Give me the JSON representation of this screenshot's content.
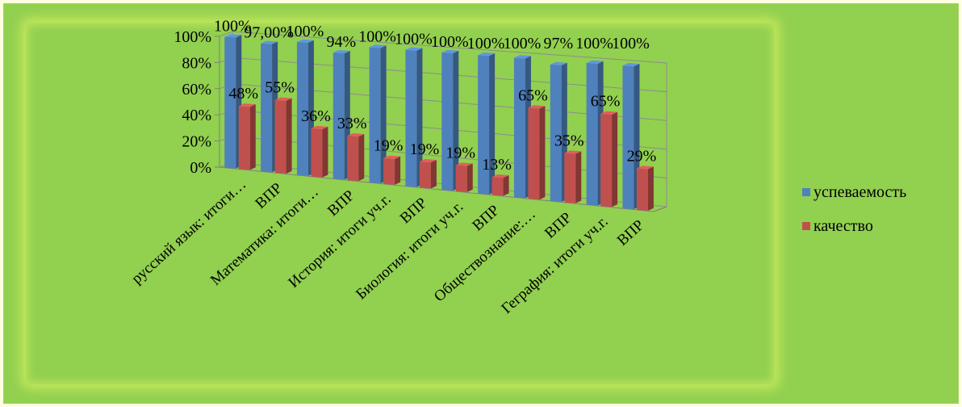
{
  "chart_data": {
    "type": "bar",
    "categories": [
      "русский язык:   итоги…",
      "ВПР",
      "Математика:   итоги…",
      "ВПР",
      "История: итоги уч.г.",
      "ВПР",
      "Биология: итоги уч.г.",
      "ВПР",
      "Обществознание:…",
      "ВПР",
      "Геграфия: итоги уч.г.",
      "ВПР"
    ],
    "series": [
      {
        "name": "успеваемость",
        "values": [
          100,
          97,
          100,
          94,
          100,
          100,
          100,
          100,
          100,
          97,
          100,
          100
        ],
        "labels": [
          "100%",
          "97,00%",
          "100%",
          "94%",
          "100%",
          "100%",
          "100%",
          "100%",
          "100%",
          "97%",
          "100%",
          "100%"
        ]
      },
      {
        "name": "качество",
        "values": [
          48,
          55,
          36,
          33,
          19,
          19,
          19,
          13,
          65,
          35,
          65,
          29
        ],
        "labels": [
          "48%",
          "55%",
          "36%",
          "33%",
          "19%",
          "19%",
          "19%",
          "13%",
          "65%",
          "35%",
          "65%",
          "29%"
        ]
      }
    ],
    "y_ticks": [
      "0%",
      "20%",
      "40%",
      "60%",
      "80%",
      "100%"
    ],
    "ylim": [
      0,
      100
    ],
    "legend": "right",
    "colors": {
      "series1": "#4f81bd",
      "series2": "#c0504d"
    }
  }
}
